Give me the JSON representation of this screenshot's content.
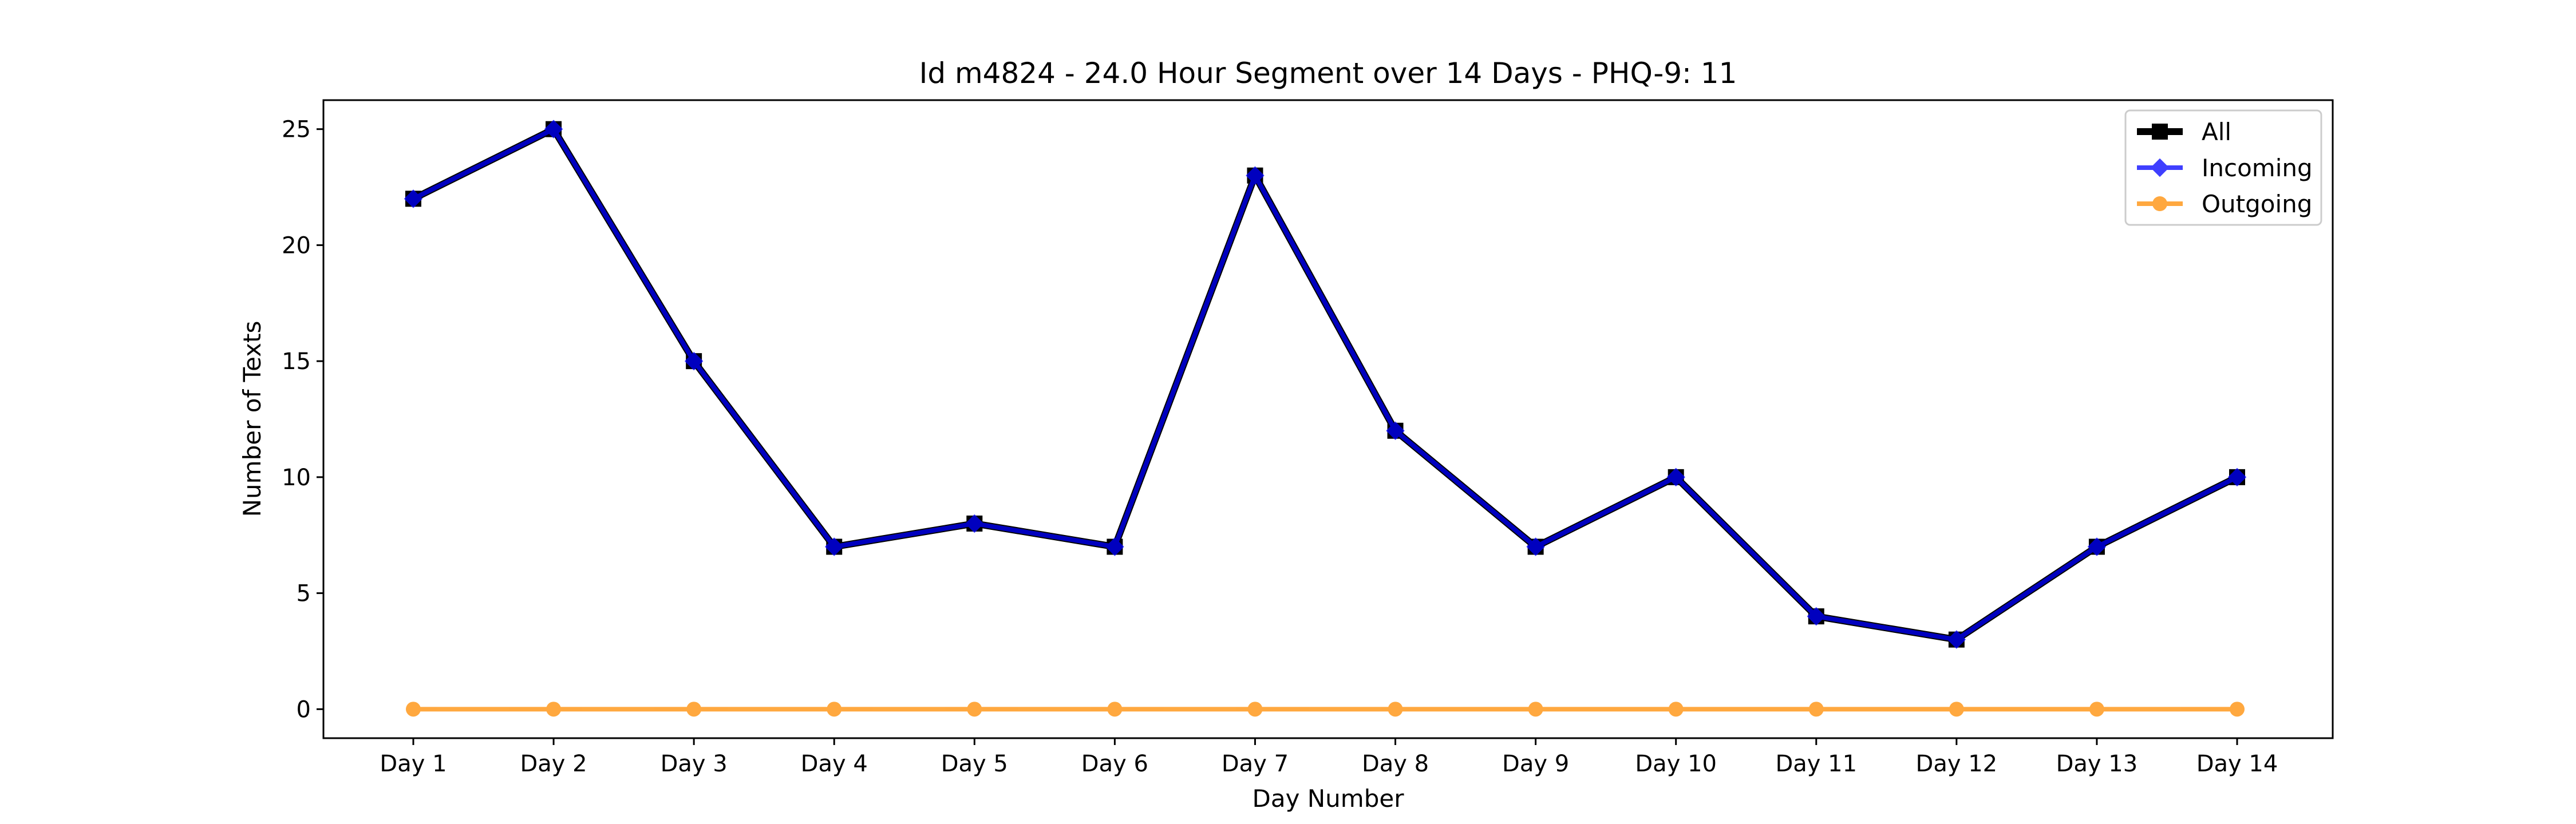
{
  "chart_data": {
    "type": "line",
    "title": "Id m4824 - 24.0 Hour Segment over 14 Days - PHQ-9: 11",
    "xlabel": "Day Number",
    "ylabel": "Number of Texts",
    "categories": [
      "Day 1",
      "Day 2",
      "Day 3",
      "Day 4",
      "Day 5",
      "Day 6",
      "Day 7",
      "Day 8",
      "Day 9",
      "Day 10",
      "Day 11",
      "Day 12",
      "Day 13",
      "Day 14"
    ],
    "ylim": [
      -1.25,
      26.25
    ],
    "yticks": [
      0,
      5,
      10,
      15,
      20,
      25
    ],
    "grid": false,
    "legend_position": "top-right",
    "series": [
      {
        "name": "All",
        "values": [
          22,
          25,
          15,
          7,
          8,
          7,
          23,
          12,
          7,
          10,
          4,
          3,
          7,
          10
        ],
        "color": "#000000",
        "marker": "square"
      },
      {
        "name": "Incoming",
        "values": [
          22,
          25,
          15,
          7,
          8,
          7,
          23,
          12,
          7,
          10,
          4,
          3,
          7,
          10
        ],
        "color": "#0000ff",
        "marker": "diamond"
      },
      {
        "name": "Outgoing",
        "values": [
          0,
          0,
          0,
          0,
          0,
          0,
          0,
          0,
          0,
          0,
          0,
          0,
          0,
          0
        ],
        "color": "#ff8c00",
        "marker": "circle"
      }
    ]
  }
}
